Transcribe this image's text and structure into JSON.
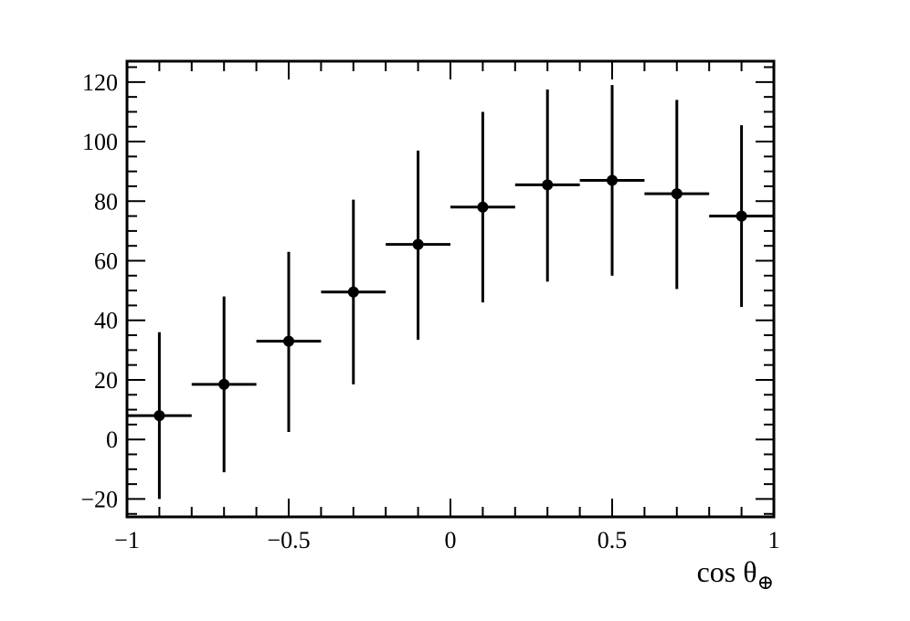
{
  "chart_data": {
    "type": "scatter",
    "style": "points-with-error-bars",
    "xlabel": "cos θ",
    "xlabel_subscript": "⊕",
    "ylabel": "",
    "xlim": [
      -1,
      1
    ],
    "ylim": [
      -26,
      127
    ],
    "x_ticks": [
      {
        "value": -1,
        "label": "−1"
      },
      {
        "value": -0.5,
        "label": "−0.5"
      },
      {
        "value": 0,
        "label": "0"
      },
      {
        "value": 0.5,
        "label": "0.5"
      },
      {
        "value": 1,
        "label": "1"
      }
    ],
    "y_ticks": [
      {
        "value": -20,
        "label": "−20"
      },
      {
        "value": 0,
        "label": "0"
      },
      {
        "value": 20,
        "label": "20"
      },
      {
        "value": 40,
        "label": "40"
      },
      {
        "value": 60,
        "label": "60"
      },
      {
        "value": 80,
        "label": "80"
      },
      {
        "value": 100,
        "label": "100"
      },
      {
        "value": 120,
        "label": "120"
      }
    ],
    "grid": false,
    "marker_color": "#000000",
    "points": [
      {
        "x": -0.9,
        "y": 8,
        "xerr": 0.1,
        "yerr_low": 28,
        "yerr_high": 28
      },
      {
        "x": -0.7,
        "y": 18.5,
        "xerr": 0.1,
        "yerr_low": 29.5,
        "yerr_high": 29.5
      },
      {
        "x": -0.5,
        "y": 33,
        "xerr": 0.1,
        "yerr_low": 30.5,
        "yerr_high": 30
      },
      {
        "x": -0.3,
        "y": 49.5,
        "xerr": 0.1,
        "yerr_low": 31,
        "yerr_high": 31
      },
      {
        "x": -0.1,
        "y": 65.5,
        "xerr": 0.1,
        "yerr_low": 32,
        "yerr_high": 31.5
      },
      {
        "x": 0.1,
        "y": 78,
        "xerr": 0.1,
        "yerr_low": 32,
        "yerr_high": 32
      },
      {
        "x": 0.3,
        "y": 85.5,
        "xerr": 0.1,
        "yerr_low": 32.5,
        "yerr_high": 32
      },
      {
        "x": 0.5,
        "y": 87,
        "xerr": 0.1,
        "yerr_low": 32,
        "yerr_high": 32
      },
      {
        "x": 0.7,
        "y": 82.5,
        "xerr": 0.1,
        "yerr_low": 32,
        "yerr_high": 31.5
      },
      {
        "x": 0.9,
        "y": 75,
        "xerr": 0.1,
        "yerr_low": 30.5,
        "yerr_high": 30.5
      }
    ]
  }
}
